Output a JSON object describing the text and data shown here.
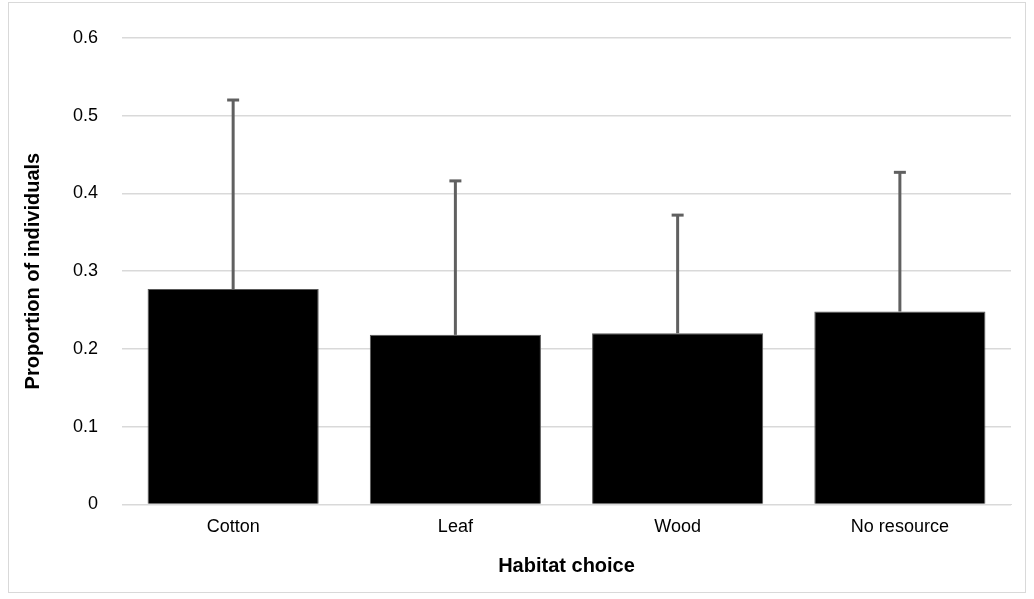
{
  "chart_data": {
    "type": "bar",
    "xlabel": "Habitat choice",
    "ylabel": "Proportion of individuals",
    "categories": [
      "Cotton",
      "Leaf",
      "Wood",
      "No resource"
    ],
    "values": [
      0.277,
      0.218,
      0.22,
      0.248
    ],
    "errors": [
      [
        0.277,
        0.52
      ],
      [
        0.218,
        0.416
      ],
      [
        0.22,
        0.372
      ],
      [
        0.248,
        0.427
      ]
    ],
    "color": "#000000",
    "ylim": [
      0,
      0.6
    ],
    "yticks": [
      0,
      0.1,
      0.2,
      0.3,
      0.4,
      0.5,
      0.6
    ],
    "grid": "y",
    "legend": false
  }
}
